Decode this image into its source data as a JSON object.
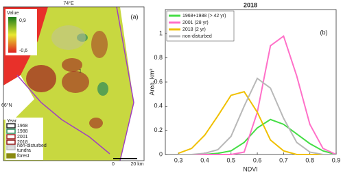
{
  "map": {
    "lon_label": "74°E",
    "lat_label": "66°N",
    "panel_label": "(a)",
    "colorbar_title": "Value",
    "colorbar_max": "0,9",
    "colorbar_min": "-0,6",
    "point_label": "1",
    "legend_title": "Year",
    "legend": [
      "1968",
      "1988",
      "2001",
      "2018",
      "non-disturbed tundra",
      "forest"
    ],
    "scale_start": "0",
    "scale_end": "20 km"
  },
  "chart_data": {
    "type": "line",
    "title": "2018",
    "panel_label": "(b)",
    "x_label": "NDVI",
    "y_label": "Area, km²",
    "x": [
      0.3,
      0.35,
      0.4,
      0.45,
      0.5,
      0.55,
      0.6,
      0.65,
      0.7,
      0.75,
      0.8,
      0.85,
      0.9
    ],
    "series": [
      {
        "name": "1968+1988 (> 42 yr)",
        "color": "#44dd44",
        "values": [
          0,
          0,
          0,
          0.01,
          0.03,
          0.1,
          0.22,
          0.29,
          0.25,
          0.17,
          0.09,
          0.03,
          0
        ]
      },
      {
        "name": "2001 (28 yr)",
        "color": "#ff70c8",
        "values": [
          0,
          0,
          0,
          0,
          0,
          0.02,
          0.35,
          0.9,
          0.98,
          0.65,
          0.25,
          0.05,
          0
        ]
      },
      {
        "name": "2018 (2 yr)",
        "color": "#f0c000",
        "values": [
          0.01,
          0.05,
          0.16,
          0.32,
          0.49,
          0.52,
          0.35,
          0.12,
          0.03,
          0,
          0,
          0,
          0
        ]
      },
      {
        "name": "non-disturbed",
        "color": "#b8b8b8",
        "values": [
          0,
          0,
          0.01,
          0.04,
          0.15,
          0.4,
          0.63,
          0.55,
          0.3,
          0.1,
          0.02,
          0,
          0
        ]
      }
    ],
    "xlim": [
      0.25,
      0.9
    ],
    "xticks": [
      0.3,
      0.4,
      0.5,
      0.6,
      0.7,
      0.8,
      0.9
    ],
    "ylim": [
      0,
      1.2
    ],
    "yticks": [
      0,
      0.2,
      0.4,
      0.6,
      0.8,
      1
    ],
    "legend": "upper left"
  }
}
